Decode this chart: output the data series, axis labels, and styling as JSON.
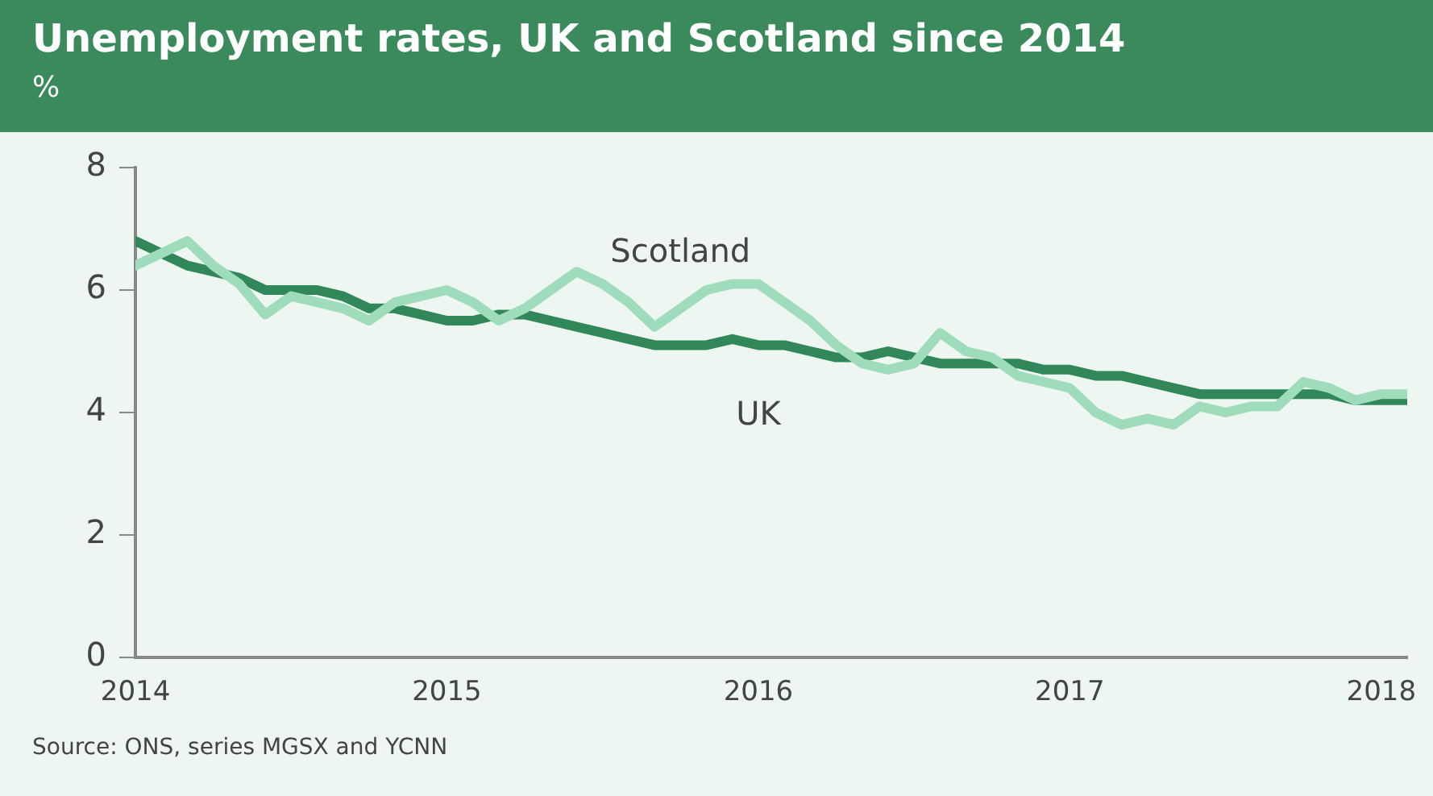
{
  "chart_data": {
    "type": "line",
    "title": "Unemployment rates, UK and Scotland since 2014",
    "ylabel": "%",
    "x": [
      "2014-01",
      "2014-02",
      "2014-03",
      "2014-04",
      "2014-05",
      "2014-06",
      "2014-07",
      "2014-08",
      "2014-09",
      "2014-10",
      "2014-11",
      "2014-12",
      "2015-01",
      "2015-02",
      "2015-03",
      "2015-04",
      "2015-05",
      "2015-06",
      "2015-07",
      "2015-08",
      "2015-09",
      "2015-10",
      "2015-11",
      "2015-12",
      "2016-01",
      "2016-02",
      "2016-03",
      "2016-04",
      "2016-05",
      "2016-06",
      "2016-07",
      "2016-08",
      "2016-09",
      "2016-10",
      "2016-11",
      "2016-12",
      "2017-01",
      "2017-02",
      "2017-03",
      "2017-04",
      "2017-05",
      "2017-06",
      "2017-07",
      "2017-08",
      "2017-09",
      "2017-10",
      "2017-11",
      "2017-12",
      "2018-01",
      "2018-02"
    ],
    "series": [
      {
        "name": "UK",
        "color": "#31875a",
        "values": [
          6.8,
          6.6,
          6.4,
          6.3,
          6.2,
          6.0,
          6.0,
          6.0,
          5.9,
          5.7,
          5.7,
          5.6,
          5.5,
          5.5,
          5.6,
          5.6,
          5.5,
          5.4,
          5.3,
          5.2,
          5.1,
          5.1,
          5.1,
          5.2,
          5.1,
          5.1,
          5.0,
          4.9,
          4.9,
          5.0,
          4.9,
          4.8,
          4.8,
          4.8,
          4.8,
          4.7,
          4.7,
          4.6,
          4.6,
          4.5,
          4.4,
          4.3,
          4.3,
          4.3,
          4.3,
          4.3,
          4.3,
          4.2,
          4.2,
          4.2
        ]
      },
      {
        "name": "Scotland",
        "color": "#9fdcbc",
        "values": [
          6.4,
          6.6,
          6.8,
          6.4,
          6.1,
          5.6,
          5.9,
          5.8,
          5.7,
          5.5,
          5.8,
          5.9,
          6.0,
          5.8,
          5.5,
          5.7,
          6.0,
          6.3,
          6.1,
          5.8,
          5.4,
          5.7,
          6.0,
          6.1,
          6.1,
          5.8,
          5.5,
          5.1,
          4.8,
          4.7,
          4.8,
          5.3,
          5.0,
          4.9,
          4.6,
          4.5,
          4.4,
          4.0,
          3.8,
          3.9,
          3.8,
          4.1,
          4.0,
          4.1,
          4.1,
          4.5,
          4.4,
          4.2,
          4.3,
          4.3
        ]
      }
    ],
    "xlim": [
      "2014-01",
      "2018-02"
    ],
    "xticks": [
      "2014",
      "2015",
      "2016",
      "2017",
      "2018"
    ],
    "ylim": [
      0,
      8
    ],
    "yticks": [
      0,
      2,
      4,
      6,
      8
    ],
    "grid": false,
    "legend": false,
    "marker": "none",
    "line_style": "solid",
    "annotations": [
      "Source: ONS, series MGSX and YCNN"
    ]
  }
}
